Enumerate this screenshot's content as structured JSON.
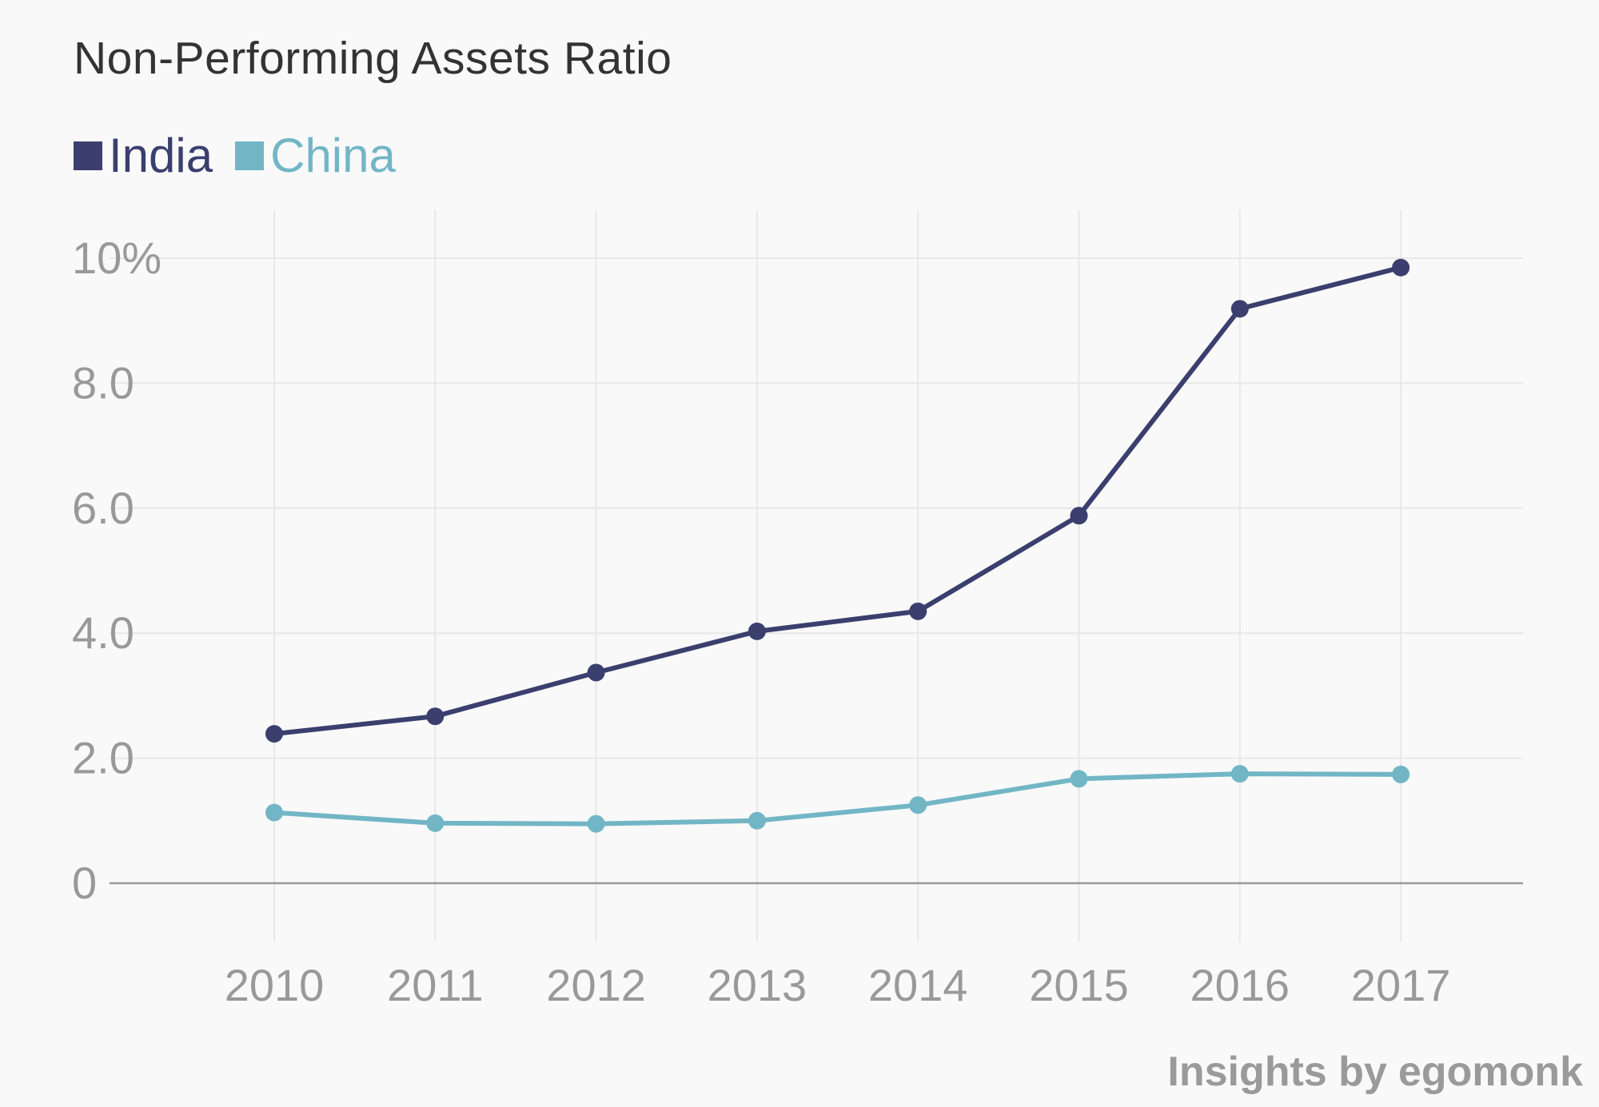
{
  "chart_data": {
    "type": "line",
    "title": "Non-Performing Assets Ratio",
    "categories": [
      "2010",
      "2011",
      "2012",
      "2013",
      "2014",
      "2015",
      "2016",
      "2017"
    ],
    "series": [
      {
        "name": "India",
        "color": "#3a3f6e",
        "values": [
          2.39,
          2.67,
          3.37,
          4.03,
          4.35,
          5.88,
          9.19,
          9.85
        ]
      },
      {
        "name": "China",
        "color": "#72b6c6",
        "values": [
          1.13,
          0.96,
          0.95,
          1.0,
          1.25,
          1.67,
          1.75,
          1.74
        ]
      }
    ],
    "y_ticks": [
      {
        "value": 10,
        "label": "10%"
      },
      {
        "value": 8,
        "label": "8.0"
      },
      {
        "value": 6,
        "label": "6.0"
      },
      {
        "value": 4,
        "label": "4.0"
      },
      {
        "value": 2,
        "label": "2.0"
      },
      {
        "value": 0,
        "label": "0"
      }
    ],
    "ylim": [
      0,
      10
    ],
    "grid": true,
    "legend_position": "top-left",
    "xlabel": "",
    "ylabel": ""
  },
  "footer": {
    "lead": "Insights by",
    "brand": "egomonk"
  }
}
